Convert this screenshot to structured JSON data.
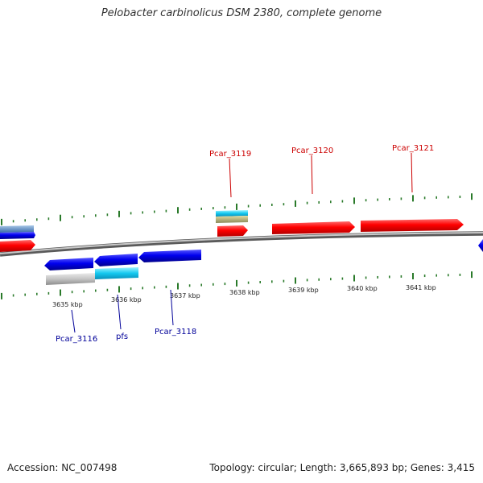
{
  "title": "Pelobacter carbinolicus DSM 2380, complete genome",
  "footer": {
    "accession": "Accession: NC_007498",
    "topology": "Topology: circular; Length: 3,665,893 bp; Genes: 3,415"
  },
  "ruler": {
    "labels": [
      "3635 kbp",
      "3636 kbp",
      "3637 kbp",
      "3638 kbp",
      "3639 kbp",
      "3640 kbp",
      "3641 kbp"
    ]
  },
  "genes": {
    "forward": [
      "Pcar_3119",
      "Pcar_3120",
      "Pcar_3121"
    ],
    "reverse": [
      "Pcar_3116",
      "pfs",
      "Pcar_3118"
    ]
  },
  "colors": {
    "forward_label": "#cc0000",
    "reverse_label": "#000099",
    "forward_gene": "#ff0000",
    "reverse_gene": "#0000ee",
    "tick": "#2a7a2a",
    "backbone": "#8a8a8a"
  }
}
